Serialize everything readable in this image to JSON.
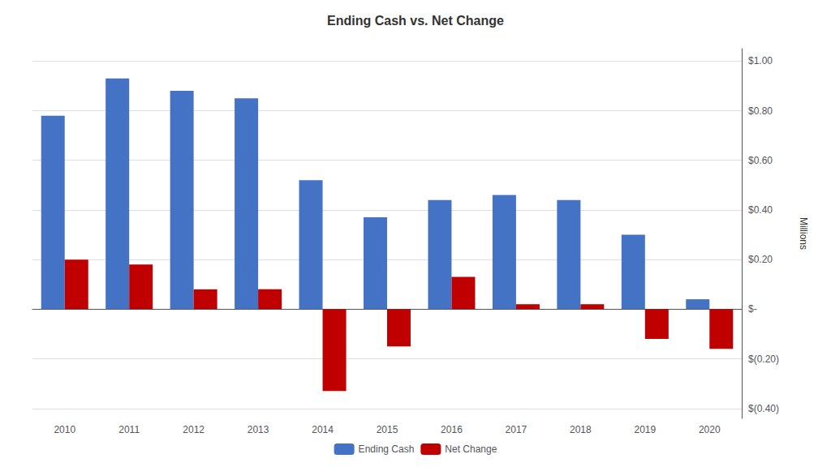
{
  "chart_data": {
    "type": "bar",
    "title": "Ending Cash vs. Net Change",
    "categories": [
      "2010",
      "2011",
      "2012",
      "2013",
      "2014",
      "2015",
      "2016",
      "2017",
      "2018",
      "2019",
      "2020"
    ],
    "series": [
      {
        "name": "Ending Cash",
        "color": "#4472C4",
        "values": [
          0.78,
          0.93,
          0.88,
          0.85,
          0.52,
          0.37,
          0.44,
          0.46,
          0.44,
          0.3,
          0.04
        ]
      },
      {
        "name": "Net Change",
        "color": "#C00000",
        "values": [
          0.2,
          0.18,
          0.08,
          0.08,
          -0.33,
          -0.15,
          0.13,
          0.02,
          0.02,
          -0.12,
          -0.16
        ]
      }
    ],
    "ylabel": "Millions",
    "ylim": [
      -0.44,
      1.05
    ],
    "yticks": [
      {
        "value": -0.4,
        "label": "$(0.40)"
      },
      {
        "value": -0.2,
        "label": "$(0.20)"
      },
      {
        "value": 0.0,
        "label": "$-"
      },
      {
        "value": 0.2,
        "label": "$0.20"
      },
      {
        "value": 0.4,
        "label": "$0.40"
      },
      {
        "value": 0.6,
        "label": "$0.60"
      },
      {
        "value": 0.8,
        "label": "$0.80"
      },
      {
        "value": 1.0,
        "label": "$1.00"
      }
    ],
    "grid": true,
    "legend": "bottom"
  }
}
